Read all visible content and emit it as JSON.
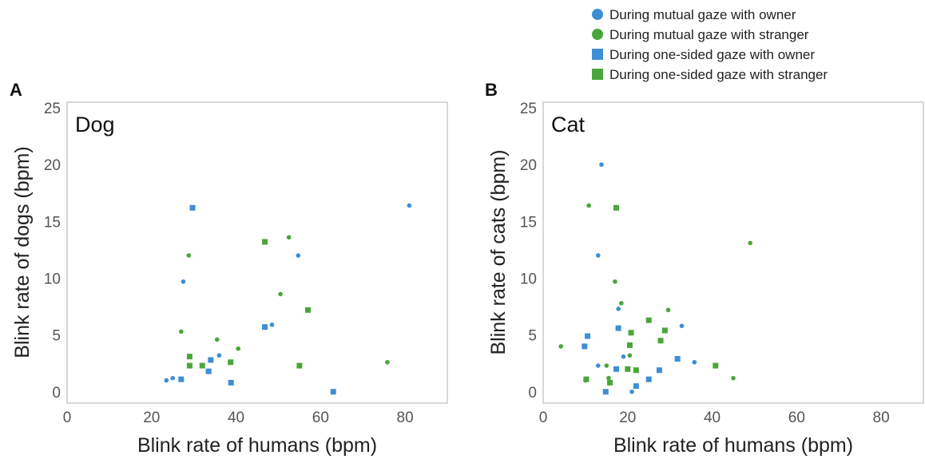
{
  "colors": {
    "owner": "#3d8ed4",
    "stranger": "#4aa63a",
    "axis": "#b0b0b0"
  },
  "legend": {
    "items": [
      {
        "label": "During mutual gaze with owner",
        "marker": "circle",
        "color": "#3d8ed4"
      },
      {
        "label": "During mutual gaze with stranger",
        "marker": "circle",
        "color": "#4aa63a"
      },
      {
        "label": "During one-sided gaze with owner",
        "marker": "square",
        "color": "#3d8ed4"
      },
      {
        "label": "During one-sided gaze with stranger",
        "marker": "square",
        "color": "#4aa63a"
      }
    ]
  },
  "chart_data": [
    {
      "type": "scatter",
      "panel_label": "A",
      "title": "Dog",
      "xlabel": "Blink rate of humans (bpm)",
      "ylabel": "Blink rate of dogs (bpm)",
      "xlim": [
        0,
        90
      ],
      "ylim": [
        -1,
        25.5
      ],
      "xticks": [
        0,
        20,
        40,
        60,
        80
      ],
      "yticks": [
        0,
        5,
        10,
        15,
        20,
        25
      ],
      "series": [
        {
          "name": "During mutual gaze with owner",
          "marker": "circle",
          "color": "#3d8ed4",
          "points": [
            [
              23.5,
              1
            ],
            [
              25,
              1.2
            ],
            [
              27.5,
              9.7
            ],
            [
              36,
              3.2
            ],
            [
              48.5,
              5.9
            ],
            [
              54.7,
              12
            ],
            [
              81,
              16.4
            ]
          ]
        },
        {
          "name": "During mutual gaze with stranger",
          "marker": "circle",
          "color": "#4aa63a",
          "points": [
            [
              27,
              5.3
            ],
            [
              28.8,
              12
            ],
            [
              35.5,
              4.6
            ],
            [
              40.5,
              3.8
            ],
            [
              50.5,
              8.6
            ],
            [
              52.5,
              13.6
            ],
            [
              75.8,
              2.6
            ]
          ]
        },
        {
          "name": "During one-sided gaze with owner",
          "marker": "square",
          "color": "#3d8ed4",
          "points": [
            [
              29.7,
              16.2
            ],
            [
              27,
              1.1
            ],
            [
              33.5,
              1.8
            ],
            [
              34,
              2.8
            ],
            [
              38.8,
              0.8
            ],
            [
              46.8,
              5.7
            ],
            [
              63,
              0
            ]
          ]
        },
        {
          "name": "During one-sided gaze with stranger",
          "marker": "square",
          "color": "#4aa63a",
          "points": [
            [
              29,
              3.1
            ],
            [
              29,
              2.3
            ],
            [
              32,
              2.3
            ],
            [
              38.7,
              2.6
            ],
            [
              46.8,
              13.2
            ],
            [
              55,
              2.3
            ],
            [
              57,
              7.2
            ]
          ]
        }
      ]
    },
    {
      "type": "scatter",
      "panel_label": "B",
      "title": "Cat",
      "xlabel": "Blink rate of humans (bpm)",
      "ylabel": "Blink rate of cats (bpm)",
      "xlim": [
        0,
        90
      ],
      "ylim": [
        -1,
        25.5
      ],
      "xticks": [
        0,
        20,
        40,
        60,
        80
      ],
      "yticks": [
        0,
        5,
        10,
        15,
        20,
        25
      ],
      "series": [
        {
          "name": "During mutual gaze with owner",
          "marker": "circle",
          "color": "#3d8ed4",
          "points": [
            [
              13.8,
              20
            ],
            [
              13,
              12
            ],
            [
              13,
              2.3
            ],
            [
              17.8,
              7.3
            ],
            [
              19,
              3.1
            ],
            [
              21,
              0
            ],
            [
              32.8,
              5.8
            ],
            [
              35.8,
              2.6
            ]
          ]
        },
        {
          "name": "During mutual gaze with stranger",
          "marker": "circle",
          "color": "#4aa63a",
          "points": [
            [
              10.8,
              16.4
            ],
            [
              17,
              9.7
            ],
            [
              18.5,
              7.8
            ],
            [
              29.6,
              7.2
            ],
            [
              20.5,
              3.2
            ],
            [
              15.5,
              1.2
            ],
            [
              4.2,
              4
            ],
            [
              10,
              1
            ],
            [
              15,
              2.3
            ],
            [
              49,
              13.1
            ],
            [
              45,
              1.2
            ]
          ]
        },
        {
          "name": "During one-sided gaze with owner",
          "marker": "square",
          "color": "#3d8ed4",
          "points": [
            [
              10.5,
              4.9
            ],
            [
              9.8,
              4
            ],
            [
              17.8,
              5.6
            ],
            [
              17.3,
              2
            ],
            [
              14.8,
              0
            ],
            [
              22,
              0.5
            ],
            [
              25,
              1.1
            ],
            [
              27.5,
              1.9
            ],
            [
              31.8,
              2.9
            ]
          ]
        },
        {
          "name": "During one-sided gaze with stranger",
          "marker": "square",
          "color": "#4aa63a",
          "points": [
            [
              17.3,
              16.2
            ],
            [
              25,
              6.3
            ],
            [
              20.8,
              5.2
            ],
            [
              20.5,
              4.1
            ],
            [
              27.8,
              4.5
            ],
            [
              28.8,
              5.4
            ],
            [
              20,
              2
            ],
            [
              22,
              1.9
            ],
            [
              15.8,
              0.8
            ],
            [
              40.8,
              2.3
            ],
            [
              10.2,
              1.1
            ]
          ]
        }
      ]
    }
  ]
}
